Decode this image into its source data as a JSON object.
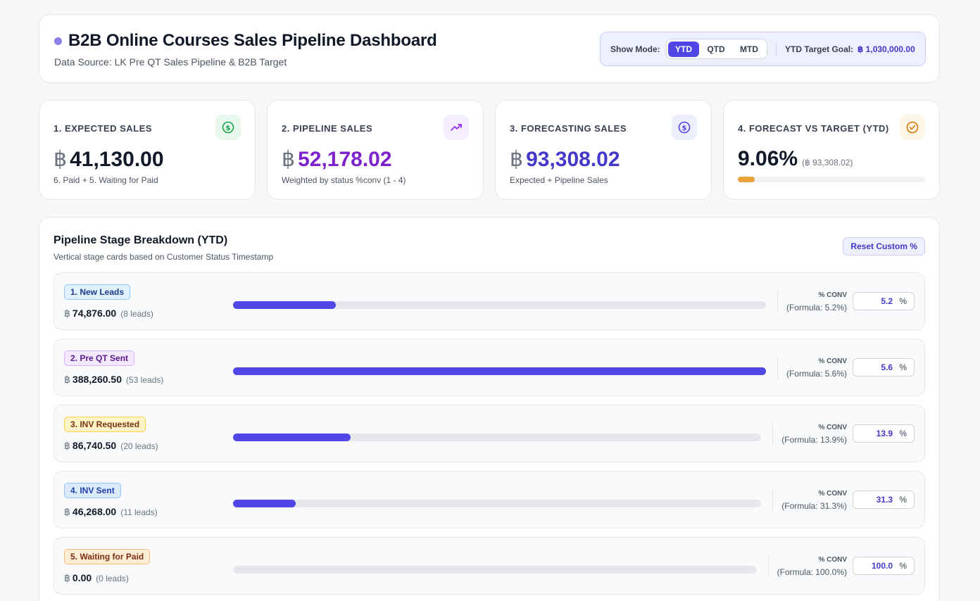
{
  "header": {
    "title": "B2B Online Courses Sales Pipeline Dashboard",
    "subtitle": "Data Source: LK Pre QT Sales Pipeline & B2B Target",
    "mode_label": "Show Mode:",
    "modes": [
      "YTD",
      "QTD",
      "MTD"
    ],
    "active_mode": "YTD",
    "target_label": "YTD Target Goal:",
    "target_value": "฿ 1,030,000.00"
  },
  "kpis": [
    {
      "label": "1. EXPECTED SALES",
      "currency": "฿",
      "value": "41,130.00",
      "desc": "6. Paid + 5. Waiting for Paid",
      "color": "#111827",
      "icon": "dollar-circle-icon"
    },
    {
      "label": "2. PIPELINE SALES",
      "currency": "฿",
      "value": "52,178.02",
      "desc": "Weighted by status %conv (1 - 4)",
      "color": "#7e22ce",
      "icon": "trending-up-icon"
    },
    {
      "label": "3. FORECASTING SALES",
      "currency": "฿",
      "value": "93,308.02",
      "desc": "Expected + Pipeline Sales",
      "color": "#4338ca",
      "icon": "dollar-circle-icon"
    },
    {
      "label": "4. FORECAST VS TARGET (YTD)",
      "value": "9.06%",
      "detail": "(฿ 93,308.02)",
      "progress": 0.0906,
      "color": "#111827",
      "icon": "check-circle-icon"
    }
  ],
  "breakdown": {
    "title": "Pipeline Stage Breakdown (YTD)",
    "subtitle": "Vertical stage cards based on Customer Status Timestamp",
    "reset_label": "Reset Custom %",
    "conv_label": "% CONV",
    "pct_symbol": "%",
    "currency": "฿",
    "stages": [
      {
        "name": "1. New Leads",
        "amount": "74,876.00",
        "leads": "(8 leads)",
        "bar_fraction": 0.193,
        "formula": "(Formula: 5.2%)",
        "conv": "5.2",
        "badge_bg": "#e0f2fe",
        "badge_border": "#93c5fd",
        "badge_color": "#1e3a8a"
      },
      {
        "name": "2. Pre QT Sent",
        "amount": "388,260.50",
        "leads": "(53 leads)",
        "bar_fraction": 1.0,
        "formula": "(Formula: 5.6%)",
        "conv": "5.6",
        "badge_bg": "#f3e8ff",
        "badge_border": "#d8b4fe",
        "badge_color": "#581c87"
      },
      {
        "name": "3. INV Requested",
        "amount": "86,740.50",
        "leads": "(20 leads)",
        "bar_fraction": 0.223,
        "formula": "(Formula: 13.9%)",
        "conv": "13.9",
        "badge_bg": "#fef3c7",
        "badge_border": "#fcd34d",
        "badge_color": "#78350f"
      },
      {
        "name": "4. INV Sent",
        "amount": "46,268.00",
        "leads": "(11 leads)",
        "bar_fraction": 0.119,
        "formula": "(Formula: 31.3%)",
        "conv": "31.3",
        "badge_bg": "#dbeafe",
        "badge_border": "#93c5fd",
        "badge_color": "#1e40af"
      },
      {
        "name": "5. Waiting for Paid",
        "amount": "0.00",
        "leads": "(0 leads)",
        "bar_fraction": 0.0,
        "formula": "(Formula: 100.0%)",
        "conv": "100.0",
        "badge_bg": "#ffedd5",
        "badge_border": "#fdba74",
        "badge_color": "#7c2d12"
      }
    ]
  }
}
